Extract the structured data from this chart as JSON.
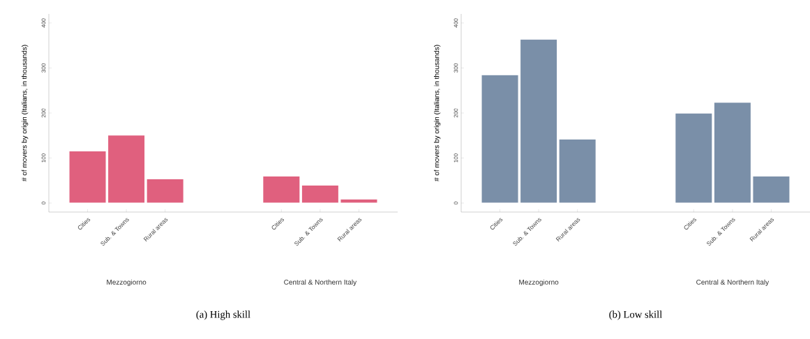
{
  "chart_data": [
    {
      "type": "bar",
      "title": "(a) High skill",
      "ylabel": "# of movers by origin (Italians, in thousands)",
      "categories": [
        "Cities",
        "Sub. & Towns",
        "Rural areas",
        null,
        null,
        "Cities",
        "Sub. & Towns",
        "Rural areas"
      ],
      "values": [
        116,
        151,
        54,
        null,
        null,
        60,
        40,
        9
      ],
      "color": "#e0607e",
      "ylim": [
        -20,
        420
      ],
      "yticks": [
        0,
        100,
        200,
        300,
        400
      ],
      "annotations": [
        "Mezzogiorno",
        "Central & Northern Italy"
      ]
    },
    {
      "type": "bar",
      "title": "(b) Low skill",
      "ylabel": "# of movers by origin (Italians, in thousands)",
      "categories": [
        "Cities",
        "Sub. & Towns",
        "Rural areas",
        null,
        null,
        "Cities",
        "Sub. & Towns",
        "Rural areas"
      ],
      "values": [
        285,
        364,
        142,
        null,
        null,
        200,
        224,
        60
      ],
      "color": "#7a8fa8",
      "ylim": [
        -20,
        420
      ],
      "yticks": [
        0,
        100,
        200,
        300,
        400
      ],
      "annotations": [
        "Mezzogiorno",
        "Central & Northern Italy"
      ]
    }
  ]
}
